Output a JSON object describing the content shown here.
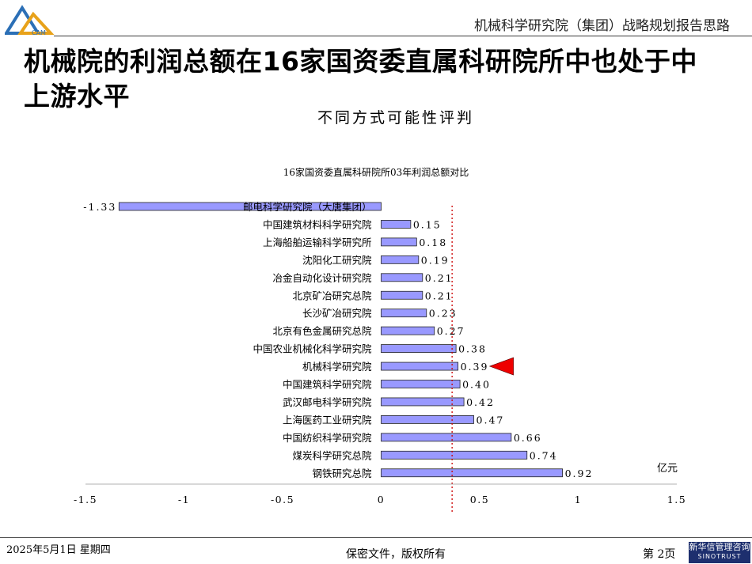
{
  "header": {
    "title": "机械科学研究院（集团）战略规划报告思路",
    "logo_text": "CAM"
  },
  "main": {
    "title": "机械院的利润总额在16家国资委直属科研院所中也处于中上游水平",
    "subtitle": "不同方式可能性评判"
  },
  "chart_data": {
    "type": "bar",
    "orientation": "horizontal",
    "title": "16家国资委直属科研院所03年利润总额对比",
    "unit_label": "亿元",
    "categories": [
      "邮电科学研究院（大唐集团）",
      "中国建筑材料科学研究院",
      "上海船舶运输科学研究所",
      "沈阳化工研究院",
      "冶金自动化设计研究院",
      "北京矿冶研究总院",
      "长沙矿冶研究院",
      "北京有色金属研究总院",
      "中国农业机械化科学研究院",
      "机械科学研究院",
      "中国建筑科学研究院",
      "武汉邮电科学研究院",
      "上海医药工业研究院",
      "中国纺织科学研究院",
      "煤炭科学研究总院",
      "钢铁研究总院"
    ],
    "values": [
      -1.33,
      0.15,
      0.18,
      0.19,
      0.21,
      0.21,
      0.23,
      0.27,
      0.38,
      0.39,
      0.4,
      0.42,
      0.47,
      0.66,
      0.74,
      0.92
    ],
    "value_labels": [
      "-1.33",
      "0.15",
      "0.18",
      "0.19",
      "0.21",
      "0.21",
      "0.23",
      "0.27",
      "0.38",
      "0.39",
      "0.40",
      "0.42",
      "0.47",
      "0.66",
      "0.74",
      "0.92"
    ],
    "xlim": [
      -1.5,
      1.5
    ],
    "xticks": [
      -1.5,
      -1,
      -0.5,
      0,
      0.5,
      1,
      1.5
    ],
    "xtick_labels": [
      "-1.5",
      "-1",
      "-0.5",
      "0",
      "0.5",
      "1",
      "1.5"
    ],
    "reference_line": 0.36,
    "highlight_category": "机械科学研究院",
    "bar_color": "#9999ff",
    "reference_line_color": "#cc0000",
    "marker_color": "#ee0000",
    "grid": false
  },
  "footer": {
    "date": "2025年5月1日 星期四",
    "confidential": "保密文件，版权所有",
    "page": "第 2页",
    "logo_cn": "新华信管理咨询",
    "logo_en": "SINOTRUST"
  }
}
